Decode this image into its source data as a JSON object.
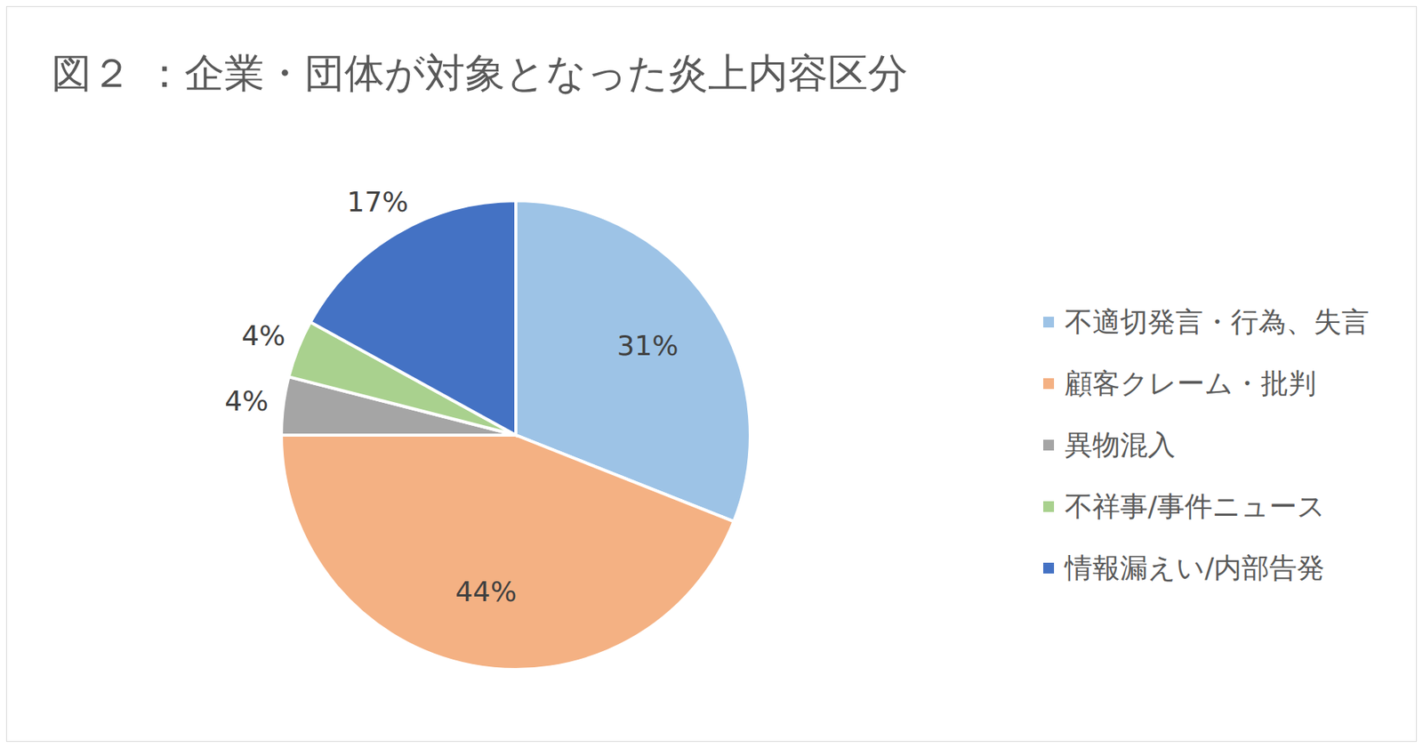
{
  "chart_data": {
    "type": "pie",
    "title": "図２ ：企業・団体が対象となった炎上内容区分",
    "categories": [
      "不適切発言・行為、失言",
      "顧客クレーム・批判",
      "異物混入",
      "不祥事/事件ニュース",
      "情報漏えい/内部告発"
    ],
    "values": [
      31,
      44,
      4,
      4,
      17
    ],
    "colors": [
      "#9dc3e6",
      "#f4b183",
      "#a5a5a5",
      "#a9d18e",
      "#4472c4"
    ],
    "data_labels": true,
    "value_labels": [
      "31%",
      "44%",
      "4%",
      "4%",
      "17%"
    ],
    "legend": "right"
  }
}
